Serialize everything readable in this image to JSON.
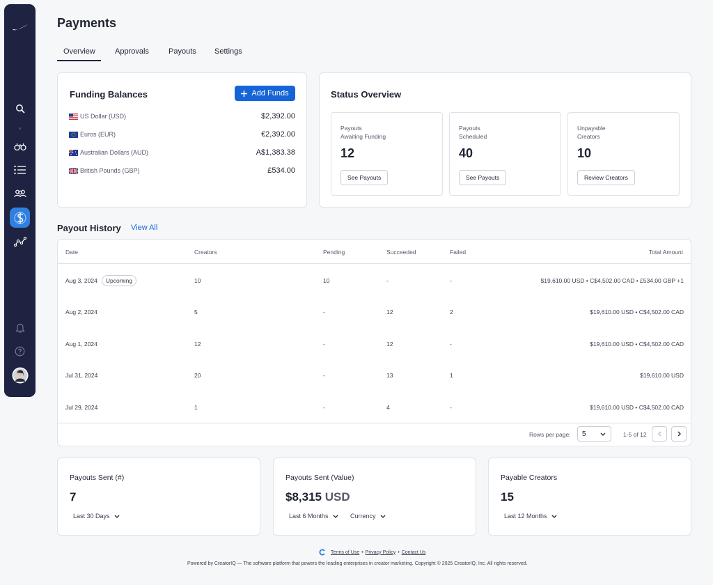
{
  "page": {
    "title": "Payments"
  },
  "tabs": [
    {
      "label": "Overview",
      "active": true
    },
    {
      "label": "Approvals"
    },
    {
      "label": "Payouts"
    },
    {
      "label": "Settings"
    }
  ],
  "sidebar": {
    "items": [
      {
        "icon": "logo-swoosh-icon"
      },
      {
        "icon": "search-icon"
      },
      {
        "icon": "binoculars-icon"
      },
      {
        "icon": "list-icon"
      },
      {
        "icon": "people-icon"
      },
      {
        "icon": "dollar-icon",
        "active": true
      },
      {
        "icon": "analytics-icon"
      },
      {
        "icon": "bell-icon"
      },
      {
        "icon": "help-icon"
      },
      {
        "icon": "avatar"
      }
    ],
    "colors": {
      "background": "#1d2341",
      "active": "#2f7fe0"
    }
  },
  "funding": {
    "title": "Funding Balances",
    "add_button": "Add Funds",
    "balances": [
      {
        "name": "US Dollar (USD)",
        "value": "$2,392.00",
        "flag": "us-flag"
      },
      {
        "name": "Euros (EUR)",
        "value": "€2,392.00",
        "flag": "eu-flag"
      },
      {
        "name": "Australian Dollars (AUD)",
        "value": "A$1,383.38",
        "flag": "au-flag"
      },
      {
        "name": "British Pounds (GBP)",
        "value": "£534.00",
        "flag": "gb-flag"
      }
    ]
  },
  "status": {
    "title": "Status Overview",
    "boxes": [
      {
        "line1": "Payouts",
        "line2": "Awaiting Funding",
        "value": "12",
        "button": "See Payouts"
      },
      {
        "line1": "Payouts",
        "line2": "Scheduled",
        "value": "40",
        "button": "See Payouts"
      },
      {
        "line1": "Unpayable",
        "line2": "Creators",
        "value": "10",
        "button": "Review Creators"
      }
    ]
  },
  "history": {
    "title": "Payout History",
    "view_all": "View All",
    "columns": [
      "Date",
      "Creators",
      "Pending",
      "Succeeded",
      "Failed",
      "Total Amount"
    ],
    "rows": [
      {
        "date": "Aug 3, 2024",
        "badge": "Upcoming",
        "creators": "10",
        "pending": "10",
        "succeeded": "-",
        "failed": "-",
        "total": "$19,610.00 USD • C$4,502.00 CAD • £534.00 GBP +1"
      },
      {
        "date": "Aug 2, 2024",
        "badge": "",
        "creators": "5",
        "pending": "-",
        "succeeded": "12",
        "failed": "2",
        "total": "$19,610.00 USD • C$4,502.00 CAD"
      },
      {
        "date": "Aug 1, 2024",
        "badge": "",
        "creators": "12",
        "pending": "-",
        "succeeded": "12",
        "failed": "-",
        "total": "$19,610.00 USD • C$4,502.00 CAD"
      },
      {
        "date": "Jul 31, 2024",
        "badge": "",
        "creators": "20",
        "pending": "-",
        "succeeded": "13",
        "failed": "1",
        "total": "$19,610.00 USD"
      },
      {
        "date": "Jul 29, 2024",
        "badge": "",
        "creators": "1",
        "pending": "-",
        "succeeded": "4",
        "failed": "-",
        "total": "$19,610.00 USD • C$4,502.00 CAD"
      }
    ],
    "pagination": {
      "rows_label": "Rows per page:",
      "rows_value": "5",
      "range": "1-5 of 12"
    }
  },
  "summary": [
    {
      "title": "Payouts Sent (#)",
      "value": "7",
      "unit": "",
      "filters": [
        "Last 30 Days"
      ]
    },
    {
      "title": "Payouts Sent (Value)",
      "value": "$8,315",
      "unit": "USD",
      "filters": [
        "Last 6 Months",
        "Currency"
      ]
    },
    {
      "title": "Payable Creators",
      "value": "15",
      "unit": "",
      "filters": [
        "Last 12 Months"
      ]
    }
  ],
  "footer": {
    "terms": "Terms of Use",
    "privacy": "Privacy Policy",
    "contact": "Contact Us",
    "sep": "•",
    "text": "Powered by CreatorIQ — The software platform that powers the leading enterprises in creator marketing. Copyright © 2025 CreatorIQ, Inc. All rights reserved."
  },
  "colors": {
    "primary": "#1565d8",
    "text": "#1f2433",
    "border": "#dfe2e8"
  }
}
